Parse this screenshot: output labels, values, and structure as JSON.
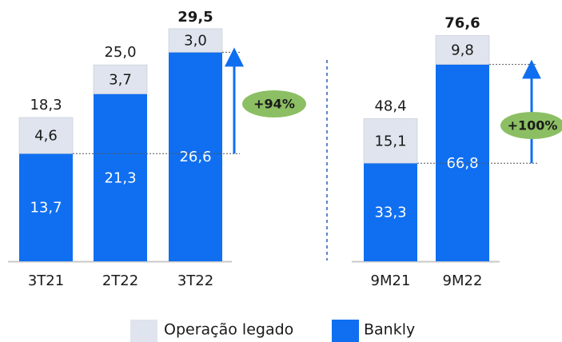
{
  "chart_data": [
    {
      "type": "stacked_bar",
      "categories": [
        "3T21",
        "2T22",
        "3T22"
      ],
      "series": [
        {
          "name": "Bankly",
          "color": "#0f6ff0",
          "values": [
            13.7,
            21.3,
            26.6
          ],
          "value_labels": [
            "13,7",
            "21,3",
            "26,6"
          ]
        },
        {
          "name": "Operação legado",
          "color": "#dfe4ee",
          "values": [
            4.6,
            3.7,
            3.0
          ],
          "value_labels": [
            "4,6",
            "3,7",
            "3,0"
          ]
        }
      ],
      "totals": [
        18.3,
        25.0,
        29.5
      ],
      "total_labels": [
        "18,3",
        "25,0",
        "29,5"
      ],
      "bold_totals": [
        false,
        false,
        true
      ],
      "annotation": "+94%",
      "ylim": [
        0,
        30
      ]
    },
    {
      "type": "stacked_bar",
      "categories": [
        "9M21",
        "9M22"
      ],
      "series": [
        {
          "color": "#0f6ff0",
          "values": [
            33.3,
            66.8
          ],
          "value_labels": [
            "33,3",
            "66,8"
          ]
        },
        {
          "color": "#dfe4ee",
          "values": [
            15.1,
            9.8
          ],
          "value_labels": [
            "15,1",
            "9,8"
          ]
        }
      ],
      "totals": [
        48.4,
        76.6
      ],
      "total_labels": [
        "48,4",
        "76,6"
      ],
      "bold_totals": [
        false,
        true
      ],
      "annotation": "+100%",
      "ylim": [
        0,
        80
      ]
    }
  ]
}
